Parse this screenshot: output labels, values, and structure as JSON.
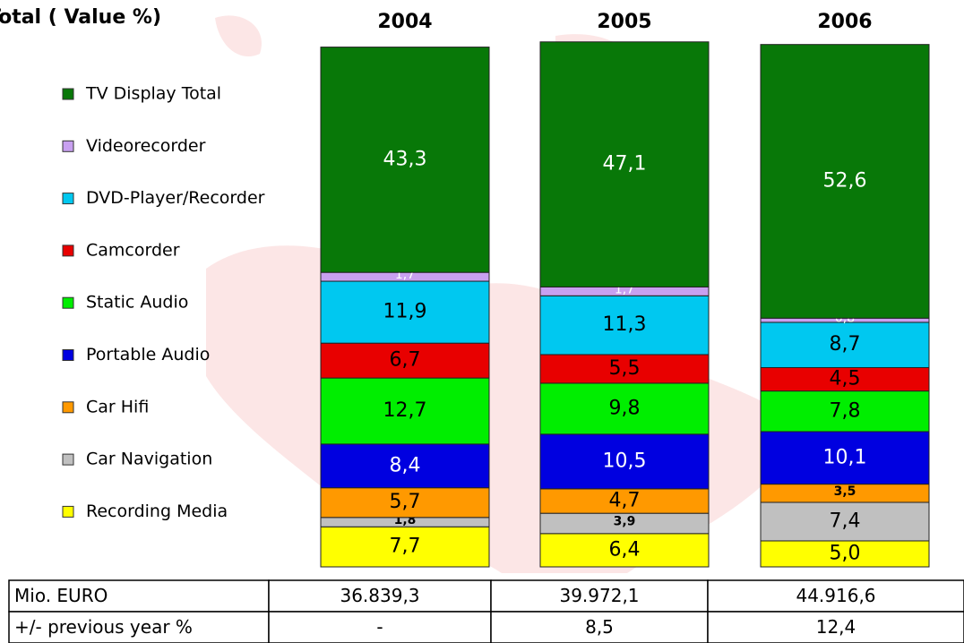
{
  "chart_data": {
    "type": "bar",
    "stacked": true,
    "title": "Total ( Value %)",
    "categories": [
      "2004",
      "2005",
      "2006"
    ],
    "series": [
      {
        "name": "TV Display Total",
        "color": "#087808",
        "values": [
          43.3,
          47.1,
          52.6
        ],
        "value_labels": [
          "43,3",
          "47,1",
          "52,6"
        ]
      },
      {
        "name": "Videorecorder",
        "color": "#c8a0f0",
        "values": [
          1.7,
          1.7,
          0.8
        ],
        "value_labels": [
          "1,7",
          "1,7",
          "0,8"
        ]
      },
      {
        "name": "DVD-Player/Recorder",
        "color": "#00c8f0",
        "values": [
          11.9,
          11.3,
          8.7
        ],
        "value_labels": [
          "11,9",
          "11,3",
          "8,7"
        ]
      },
      {
        "name": "Camcorder",
        "color": "#e80000",
        "values": [
          6.7,
          5.5,
          4.5
        ],
        "value_labels": [
          "6,7",
          "5,5",
          "4,5"
        ]
      },
      {
        "name": "Static Audio",
        "color": "#00ee00",
        "values": [
          12.7,
          9.8,
          7.8
        ],
        "value_labels": [
          "12,7",
          "9,8",
          "7,8"
        ]
      },
      {
        "name": "Portable Audio",
        "color": "#0000e0",
        "values": [
          8.4,
          10.5,
          10.1
        ],
        "value_labels": [
          "8,4",
          "10,5",
          "10,1"
        ]
      },
      {
        "name": "Car Hifi",
        "color": "#ff9900",
        "values": [
          5.7,
          4.7,
          3.5
        ],
        "value_labels": [
          "5,7",
          "4,7",
          "3,5"
        ]
      },
      {
        "name": "Car Navigation",
        "color": "#c0c0c0",
        "values": [
          1.8,
          3.9,
          7.4
        ],
        "value_labels": [
          "1,8",
          "3,9",
          "7,4"
        ]
      },
      {
        "name": "Recording Media",
        "color": "#ffff00",
        "values": [
          7.7,
          6.4,
          5.0
        ],
        "value_labels": [
          "7,7",
          "6,4",
          "5,0"
        ]
      }
    ],
    "table": {
      "rows": [
        [
          "Mio. EURO",
          "36.839,3",
          "39.972,1",
          "44.916,6"
        ],
        [
          "+/- previous year %",
          "-",
          "8,5",
          "12,4"
        ]
      ]
    }
  }
}
